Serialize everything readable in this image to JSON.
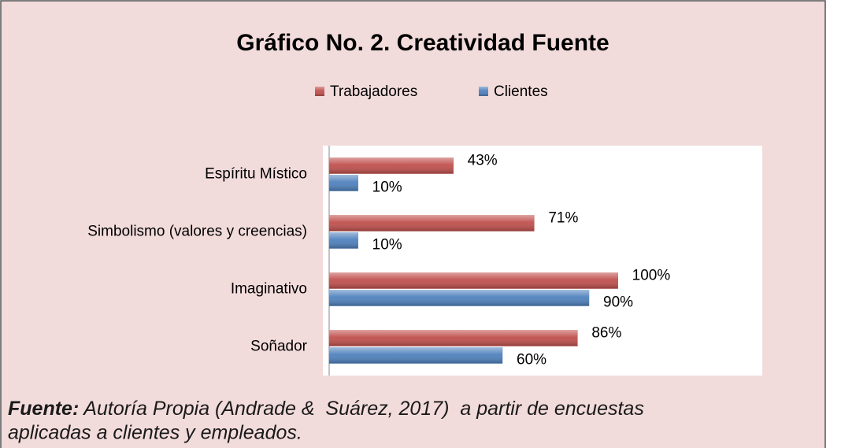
{
  "chart_data": {
    "type": "hbar",
    "title": "Gráfico No. 2. Creatividad Fuente",
    "categories": [
      "Espíritu Místico",
      "Simbolismo (valores y creencias)",
      "Imaginativo",
      "Soñador"
    ],
    "series": [
      {
        "name": "Trabajadores",
        "color": "#c0504d",
        "values": [
          43,
          71,
          100,
          86
        ],
        "value_labels": [
          "43%",
          "71%",
          "100%",
          "86%"
        ]
      },
      {
        "name": "Clientes",
        "color": "#4f81bd",
        "values": [
          10,
          10,
          90,
          60
        ],
        "value_labels": [
          "10%",
          "10%",
          "90%",
          "60%"
        ]
      }
    ],
    "xlim": [
      0,
      150
    ],
    "source_label": "Fuente:",
    "source_text": " Autoría Propia (Andrade &  Suárez, 2017)  a partir de encuestas",
    "source_text_2": "aplicadas a clientes y empleados."
  }
}
